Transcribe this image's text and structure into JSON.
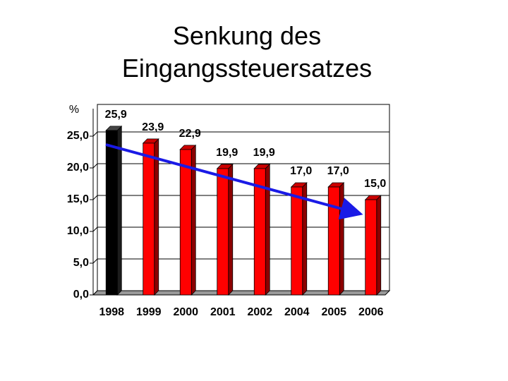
{
  "chart_data": {
    "type": "bar3d",
    "title": "Senkung des Eingangssteuersatzes",
    "y_label": "%",
    "categories": [
      "1998",
      "1999",
      "2000",
      "2001",
      "2002",
      "2004",
      "2005",
      "2006"
    ],
    "values": [
      25.9,
      23.9,
      22.9,
      19.9,
      19.9,
      17.0,
      17.0,
      15.0
    ],
    "value_labels": [
      "25,9",
      "23,9",
      "22,9",
      "19,9",
      "19,9",
      "17,0",
      "17,0",
      "15,0"
    ],
    "colors": [
      "#000000",
      "#ff0000",
      "#ff0000",
      "#ff0000",
      "#ff0000",
      "#ff0000",
      "#ff0000",
      "#ff0000"
    ],
    "ylim": [
      0,
      30
    ],
    "yticks": [
      {
        "value": 0,
        "label": "0,0"
      },
      {
        "value": 5,
        "label": "5,0"
      },
      {
        "value": 10,
        "label": "10,0"
      },
      {
        "value": 15,
        "label": "15,0"
      },
      {
        "value": 20,
        "label": "20,0"
      },
      {
        "value": 25,
        "label": "25,0"
      }
    ],
    "grid": true
  }
}
